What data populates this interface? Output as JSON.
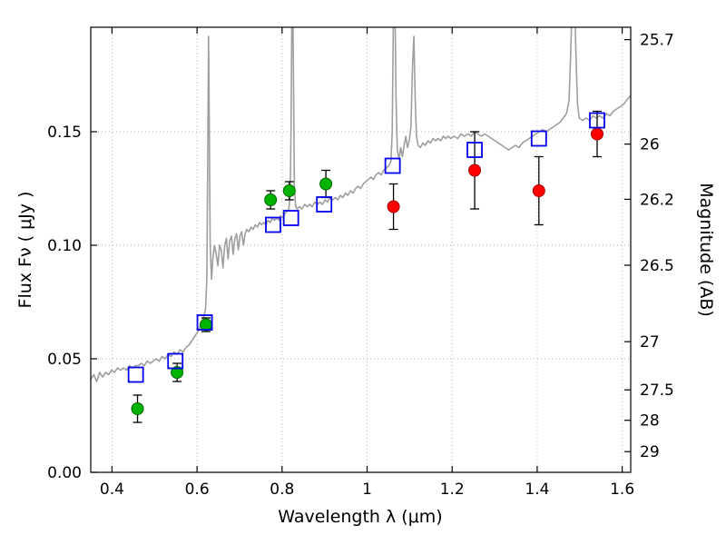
{
  "chart_data": {
    "type": "line+scatter",
    "title": "",
    "xlabel": "Wavelength  λ (μm)",
    "ylabel_left": "Flux  Fν  ( μJy )",
    "ylabel_right": "Magnitude (AB)",
    "xlim": [
      0.35,
      1.62
    ],
    "ylim_flux": [
      0,
      0.196
    ],
    "grid": true,
    "mag_zero_point": 23.9,
    "x_ticks": [
      0.4,
      0.6,
      0.8,
      1.0,
      1.2,
      1.4,
      1.6
    ],
    "x_tick_labels": [
      "0.4",
      "0.6",
      "0.8",
      "1",
      "1.2",
      "1.4",
      "1.6"
    ],
    "y_ticks_left": [
      0.0,
      0.05,
      0.1,
      0.15
    ],
    "y_tick_labels_left": [
      "0.00",
      "0.05",
      "0.10",
      "0.15"
    ],
    "y_ticks_right_mag": [
      25.7,
      26,
      26.2,
      26.5,
      27,
      27.5,
      28,
      29
    ],
    "y_tick_labels_right": [
      "25.7",
      "26",
      "26.2",
      "26.5",
      "27",
      "27.5",
      "28",
      "29"
    ],
    "colors": {
      "spectrum": "#9e9e9e",
      "green_points": "#00b300",
      "green_edge": "#006400",
      "red_points": "#ff0000",
      "red_edge": "#aa0000",
      "blue_squares": "#0000ee",
      "errorbar": "#000000",
      "grid": "#b3b3b3",
      "axis": "#000000"
    },
    "series": [
      {
        "name": "model-spectrum",
        "type": "line",
        "color_key": "spectrum",
        "points": [
          [
            0.35,
            0.041
          ],
          [
            0.357,
            0.043
          ],
          [
            0.364,
            0.04
          ],
          [
            0.371,
            0.044
          ],
          [
            0.378,
            0.042
          ],
          [
            0.385,
            0.044
          ],
          [
            0.392,
            0.043
          ],
          [
            0.399,
            0.045
          ],
          [
            0.406,
            0.044
          ],
          [
            0.413,
            0.046
          ],
          [
            0.42,
            0.045
          ],
          [
            0.427,
            0.046
          ],
          [
            0.434,
            0.045
          ],
          [
            0.441,
            0.047
          ],
          [
            0.448,
            0.046
          ],
          [
            0.455,
            0.047
          ],
          [
            0.462,
            0.047
          ],
          [
            0.469,
            0.048
          ],
          [
            0.476,
            0.047
          ],
          [
            0.483,
            0.049
          ],
          [
            0.49,
            0.048
          ],
          [
            0.497,
            0.049
          ],
          [
            0.504,
            0.05
          ],
          [
            0.511,
            0.049
          ],
          [
            0.518,
            0.051
          ],
          [
            0.525,
            0.05
          ],
          [
            0.532,
            0.052
          ],
          [
            0.539,
            0.051
          ],
          [
            0.546,
            0.053
          ],
          [
            0.553,
            0.052
          ],
          [
            0.56,
            0.054
          ],
          [
            0.567,
            0.053
          ],
          [
            0.574,
            0.055
          ],
          [
            0.581,
            0.056
          ],
          [
            0.588,
            0.058
          ],
          [
            0.595,
            0.06
          ],
          [
            0.602,
            0.062
          ],
          [
            0.609,
            0.065
          ],
          [
            0.615,
            0.068
          ],
          [
            0.62,
            0.072
          ],
          [
            0.623,
            0.085
          ],
          [
            0.625,
            0.13
          ],
          [
            0.627,
            0.192
          ],
          [
            0.629,
            0.15
          ],
          [
            0.631,
            0.1
          ],
          [
            0.634,
            0.085
          ],
          [
            0.637,
            0.094
          ],
          [
            0.641,
            0.1
          ],
          [
            0.645,
            0.096
          ],
          [
            0.649,
            0.091
          ],
          [
            0.653,
            0.1
          ],
          [
            0.657,
            0.098
          ],
          [
            0.661,
            0.09
          ],
          [
            0.665,
            0.1
          ],
          [
            0.669,
            0.103
          ],
          [
            0.673,
            0.094
          ],
          [
            0.677,
            0.102
          ],
          [
            0.681,
            0.104
          ],
          [
            0.685,
            0.096
          ],
          [
            0.689,
            0.103
          ],
          [
            0.693,
            0.105
          ],
          [
            0.697,
            0.098
          ],
          [
            0.701,
            0.104
          ],
          [
            0.705,
            0.106
          ],
          [
            0.709,
            0.1
          ],
          [
            0.713,
            0.105
          ],
          [
            0.717,
            0.107
          ],
          [
            0.722,
            0.106
          ],
          [
            0.727,
            0.108
          ],
          [
            0.732,
            0.107
          ],
          [
            0.737,
            0.109
          ],
          [
            0.742,
            0.108
          ],
          [
            0.747,
            0.11
          ],
          [
            0.752,
            0.109
          ],
          [
            0.757,
            0.11
          ],
          [
            0.762,
            0.109
          ],
          [
            0.767,
            0.111
          ],
          [
            0.772,
            0.11
          ],
          [
            0.777,
            0.112
          ],
          [
            0.782,
            0.111
          ],
          [
            0.787,
            0.112
          ],
          [
            0.792,
            0.111
          ],
          [
            0.797,
            0.113
          ],
          [
            0.802,
            0.112
          ],
          [
            0.807,
            0.114
          ],
          [
            0.812,
            0.115
          ],
          [
            0.816,
            0.116
          ],
          [
            0.819,
            0.122
          ],
          [
            0.821,
            0.15
          ],
          [
            0.823,
            0.2
          ],
          [
            0.825,
            0.212
          ],
          [
            0.827,
            0.17
          ],
          [
            0.829,
            0.125
          ],
          [
            0.832,
            0.117
          ],
          [
            0.836,
            0.116
          ],
          [
            0.841,
            0.117
          ],
          [
            0.847,
            0.116
          ],
          [
            0.853,
            0.118
          ],
          [
            0.859,
            0.117
          ],
          [
            0.865,
            0.118
          ],
          [
            0.871,
            0.117
          ],
          [
            0.877,
            0.119
          ],
          [
            0.883,
            0.118
          ],
          [
            0.889,
            0.119
          ],
          [
            0.895,
            0.118
          ],
          [
            0.901,
            0.12
          ],
          [
            0.907,
            0.119
          ],
          [
            0.913,
            0.121
          ],
          [
            0.919,
            0.12
          ],
          [
            0.925,
            0.121
          ],
          [
            0.931,
            0.12
          ],
          [
            0.937,
            0.122
          ],
          [
            0.943,
            0.121
          ],
          [
            0.949,
            0.123
          ],
          [
            0.955,
            0.122
          ],
          [
            0.961,
            0.124
          ],
          [
            0.967,
            0.123
          ],
          [
            0.973,
            0.125
          ],
          [
            0.979,
            0.126
          ],
          [
            0.985,
            0.125
          ],
          [
            0.991,
            0.127
          ],
          [
            0.997,
            0.128
          ],
          [
            1.003,
            0.129
          ],
          [
            1.009,
            0.13
          ],
          [
            1.015,
            0.129
          ],
          [
            1.021,
            0.131
          ],
          [
            1.027,
            0.132
          ],
          [
            1.033,
            0.131
          ],
          [
            1.039,
            0.133
          ],
          [
            1.045,
            0.134
          ],
          [
            1.051,
            0.135
          ],
          [
            1.056,
            0.137
          ],
          [
            1.059,
            0.15
          ],
          [
            1.062,
            0.205
          ],
          [
            1.065,
            0.212
          ],
          [
            1.068,
            0.165
          ],
          [
            1.071,
            0.142
          ],
          [
            1.075,
            0.138
          ],
          [
            1.079,
            0.143
          ],
          [
            1.083,
            0.139
          ],
          [
            1.087,
            0.144
          ],
          [
            1.091,
            0.148
          ],
          [
            1.095,
            0.143
          ],
          [
            1.099,
            0.146
          ],
          [
            1.103,
            0.152
          ],
          [
            1.107,
            0.18
          ],
          [
            1.11,
            0.192
          ],
          [
            1.113,
            0.165
          ],
          [
            1.116,
            0.148
          ],
          [
            1.12,
            0.144
          ],
          [
            1.125,
            0.143
          ],
          [
            1.131,
            0.145
          ],
          [
            1.137,
            0.144
          ],
          [
            1.143,
            0.146
          ],
          [
            1.149,
            0.145
          ],
          [
            1.155,
            0.147
          ],
          [
            1.161,
            0.146
          ],
          [
            1.167,
            0.147
          ],
          [
            1.173,
            0.146
          ],
          [
            1.179,
            0.148
          ],
          [
            1.185,
            0.147
          ],
          [
            1.191,
            0.148
          ],
          [
            1.197,
            0.147
          ],
          [
            1.205,
            0.148
          ],
          [
            1.213,
            0.147
          ],
          [
            1.221,
            0.149
          ],
          [
            1.229,
            0.148
          ],
          [
            1.237,
            0.149
          ],
          [
            1.245,
            0.148
          ],
          [
            1.253,
            0.15
          ],
          [
            1.261,
            0.149
          ],
          [
            1.269,
            0.148
          ],
          [
            1.277,
            0.149
          ],
          [
            1.285,
            0.148
          ],
          [
            1.293,
            0.147
          ],
          [
            1.301,
            0.146
          ],
          [
            1.309,
            0.145
          ],
          [
            1.317,
            0.144
          ],
          [
            1.325,
            0.143
          ],
          [
            1.333,
            0.142
          ],
          [
            1.341,
            0.143
          ],
          [
            1.349,
            0.144
          ],
          [
            1.357,
            0.143
          ],
          [
            1.365,
            0.145
          ],
          [
            1.373,
            0.146
          ],
          [
            1.381,
            0.147
          ],
          [
            1.389,
            0.148
          ],
          [
            1.397,
            0.149
          ],
          [
            1.405,
            0.15
          ],
          [
            1.413,
            0.151
          ],
          [
            1.421,
            0.15
          ],
          [
            1.429,
            0.151
          ],
          [
            1.437,
            0.152
          ],
          [
            1.445,
            0.153
          ],
          [
            1.453,
            0.154
          ],
          [
            1.461,
            0.156
          ],
          [
            1.469,
            0.158
          ],
          [
            1.475,
            0.164
          ],
          [
            1.479,
            0.185
          ],
          [
            1.483,
            0.212
          ],
          [
            1.487,
            0.215
          ],
          [
            1.491,
            0.185
          ],
          [
            1.495,
            0.162
          ],
          [
            1.499,
            0.156
          ],
          [
            1.507,
            0.155
          ],
          [
            1.515,
            0.156
          ],
          [
            1.523,
            0.155
          ],
          [
            1.531,
            0.157
          ],
          [
            1.539,
            0.156
          ],
          [
            1.547,
            0.157
          ],
          [
            1.555,
            0.156
          ],
          [
            1.563,
            0.158
          ],
          [
            1.571,
            0.157
          ],
          [
            1.579,
            0.159
          ],
          [
            1.587,
            0.16
          ],
          [
            1.595,
            0.161
          ],
          [
            1.603,
            0.162
          ],
          [
            1.611,
            0.164
          ],
          [
            1.62,
            0.166
          ]
        ]
      },
      {
        "name": "photometry-green-circles",
        "type": "scatter",
        "marker": "circle",
        "color_key": "green_points",
        "edge_key": "green_edge",
        "points": [
          {
            "x": 0.46,
            "y": 0.028,
            "yerr": 0.006
          },
          {
            "x": 0.553,
            "y": 0.044,
            "yerr": 0.004
          },
          {
            "x": 0.621,
            "y": 0.065,
            "yerr": 0.003
          },
          {
            "x": 0.773,
            "y": 0.12,
            "yerr": 0.004
          },
          {
            "x": 0.817,
            "y": 0.124,
            "yerr": 0.004
          },
          {
            "x": 0.903,
            "y": 0.127,
            "yerr": 0.006
          }
        ]
      },
      {
        "name": "photometry-red-circles",
        "type": "scatter",
        "marker": "circle",
        "color_key": "red_points",
        "edge_key": "red_edge",
        "points": [
          {
            "x": 1.062,
            "y": 0.117,
            "yerr": 0.01
          },
          {
            "x": 1.253,
            "y": 0.133,
            "yerr": 0.017
          },
          {
            "x": 1.404,
            "y": 0.124,
            "yerr": 0.015
          },
          {
            "x": 1.541,
            "y": 0.149,
            "yerr": 0.01
          }
        ]
      },
      {
        "name": "model-photometry-blue-squares",
        "type": "scatter",
        "marker": "open-square",
        "color_key": "blue_squares",
        "points": [
          {
            "x": 0.456,
            "y": 0.043
          },
          {
            "x": 0.549,
            "y": 0.049
          },
          {
            "x": 0.618,
            "y": 0.066
          },
          {
            "x": 0.779,
            "y": 0.109
          },
          {
            "x": 0.821,
            "y": 0.112
          },
          {
            "x": 0.899,
            "y": 0.118
          },
          {
            "x": 1.06,
            "y": 0.135
          },
          {
            "x": 1.253,
            "y": 0.142
          },
          {
            "x": 1.404,
            "y": 0.147
          },
          {
            "x": 1.541,
            "y": 0.155
          }
        ]
      }
    ]
  }
}
